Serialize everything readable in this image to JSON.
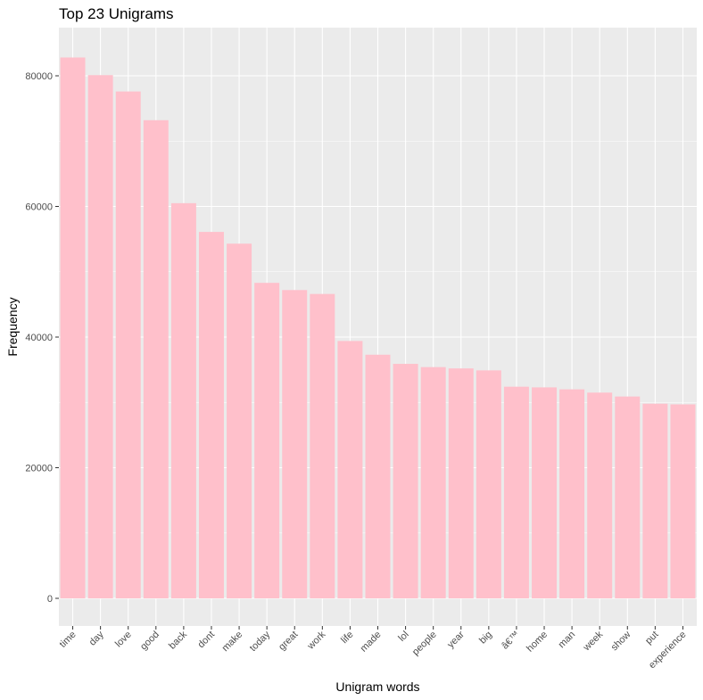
{
  "chart_data": {
    "type": "bar",
    "title": "Top 23 Unigrams",
    "xlabel": "Unigram words",
    "ylabel": "Frequency",
    "categories": [
      "time",
      "day",
      "love",
      "good",
      "back",
      "dont",
      "make",
      "today",
      "great",
      "work",
      "life",
      "made",
      "lol",
      "people",
      "year",
      "big",
      "â€™",
      "home",
      "man",
      "week",
      "show",
      "put",
      "experience"
    ],
    "values": [
      82800,
      80100,
      77600,
      73200,
      60500,
      56100,
      54300,
      48300,
      47200,
      46600,
      39400,
      37300,
      35900,
      35400,
      35200,
      34900,
      32400,
      32300,
      32000,
      31500,
      30900,
      29800,
      29700
    ],
    "ylim": [
      0,
      87000
    ],
    "yticks": [
      0,
      20000,
      40000,
      60000,
      80000
    ],
    "bar_color": "#ffc0cb",
    "panel_color": "#ebebeb",
    "grid": true
  }
}
